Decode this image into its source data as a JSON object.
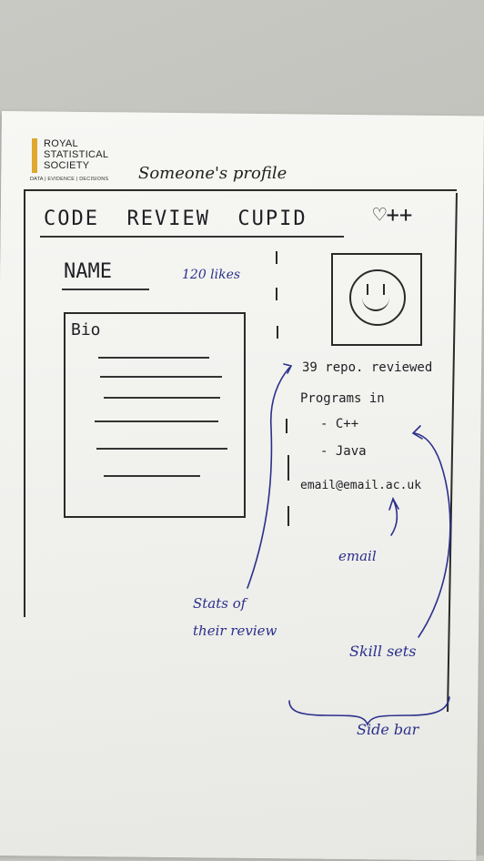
{
  "photo": {
    "logo": {
      "lines": [
        "ROYAL",
        "STATISTICAL",
        "SOCIETY"
      ],
      "tagline": "DATA | EVIDENCE | DECISIONS",
      "accent": "#e0a82e"
    },
    "page_title": "Someone's profile"
  },
  "sketch": {
    "brand": "CODE  REVIEW  CUPID",
    "heart_icon": "heart-icon",
    "heart_label": "♡++",
    "name_label": "NAME",
    "likes": "120 likes",
    "avatar_icon": "smiley-face-icon",
    "bio_label": "Bio",
    "sidebar": {
      "repos_reviewed": "39 repo. reviewed",
      "programs_in": "Programs in",
      "skills": [
        "- C++",
        "- Java"
      ],
      "email": "email@email.ac.uk"
    }
  },
  "annotations": {
    "stats": [
      "Stats of",
      "their review"
    ],
    "email": "email",
    "skills": "Skill sets",
    "sidebar": "Side bar"
  },
  "colors": {
    "ink": "#1f1f24",
    "annotation": "#2b2f8a",
    "paper": "#f2f2ef"
  }
}
